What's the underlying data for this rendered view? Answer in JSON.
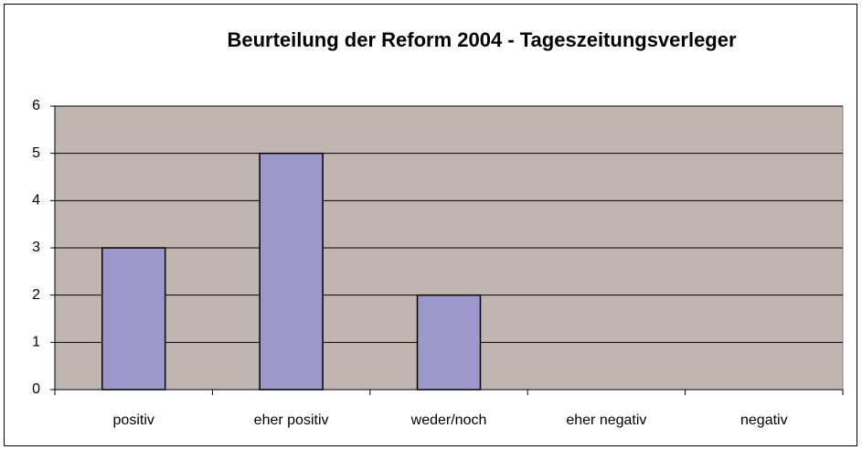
{
  "chart_data": {
    "type": "bar",
    "title": "Beurteilung der Reform 2004 - Tageszeitungsverleger",
    "categories": [
      "positiv",
      "eher positiv",
      "weder/noch",
      "eher negativ",
      "negativ"
    ],
    "values": [
      3,
      5,
      2,
      0,
      0
    ],
    "color": "#9d98cc",
    "ylim": [
      0,
      6
    ],
    "yticks": [
      0,
      1,
      2,
      3,
      4,
      5,
      6
    ],
    "grid": true
  }
}
